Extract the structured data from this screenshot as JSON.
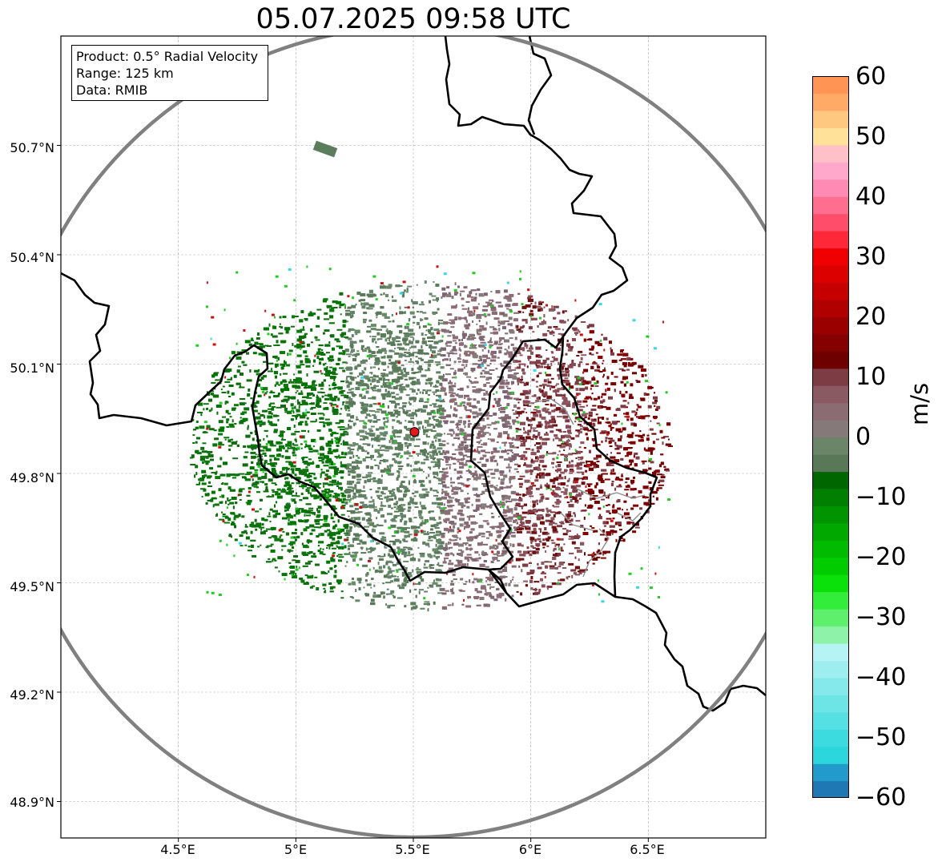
{
  "title": "05.07.2025 09:58 UTC",
  "info_box": {
    "product": "Product: 0.5° Radial Velocity",
    "range": "Range: 125 km",
    "data": "Data: RMIB"
  },
  "map": {
    "lon_range": [
      4.0,
      7.0
    ],
    "lat_range": [
      48.8,
      51.0
    ],
    "x_ticks": [
      "4.5°E",
      "5°E",
      "5.5°E",
      "6°E",
      "6.5°E"
    ],
    "x_tick_values": [
      4.5,
      5.0,
      5.5,
      6.0,
      6.5
    ],
    "y_ticks": [
      "50.7°N",
      "50.4°N",
      "50.1°N",
      "49.8°N",
      "49.5°N",
      "49.2°N",
      "48.9°N"
    ],
    "y_tick_values": [
      50.7,
      50.4,
      50.1,
      49.8,
      49.5,
      49.2,
      48.9
    ],
    "radar_site": {
      "lon": 5.505,
      "lat": 49.914
    },
    "range_km": 125,
    "gridlines": true,
    "range_ring_color": "#808080",
    "site_marker_color": "#e41a1c"
  },
  "colorbar": {
    "label": "m/s",
    "min": -60,
    "max": 60,
    "ticks": [
      "60",
      "50",
      "40",
      "30",
      "20",
      "10",
      "0",
      "−10",
      "−20",
      "−30",
      "−40",
      "−50",
      "−60"
    ],
    "tick_values": [
      60,
      50,
      40,
      30,
      20,
      10,
      0,
      -10,
      -20,
      -30,
      -40,
      -50,
      -60
    ],
    "colors_bottom_to_top": [
      "#1f78b4",
      "#229bcc",
      "#2bd6dc",
      "#3cdbdf",
      "#55e0e3",
      "#6de5e7",
      "#85e9eb",
      "#9eeef0",
      "#b6f3f4",
      "#8ef3a8",
      "#5ef06c",
      "#32ee3a",
      "#0ae00a",
      "#00cc00",
      "#00bb00",
      "#00a800",
      "#009400",
      "#007f00",
      "#006600",
      "#587858",
      "#6a8568",
      "#86797a",
      "#8c6c73",
      "#8a5a62",
      "#7d3b44",
      "#6e0000",
      "#850000",
      "#9b0000",
      "#b00000",
      "#c60000",
      "#dc0000",
      "#f00000",
      "#ff2838",
      "#ff4d6a",
      "#ff6e8e",
      "#ff8bb5",
      "#ffa8cc",
      "#ffc0c8",
      "#ffe19a",
      "#ffc880",
      "#ffaa66",
      "#ff9455"
    ]
  }
}
